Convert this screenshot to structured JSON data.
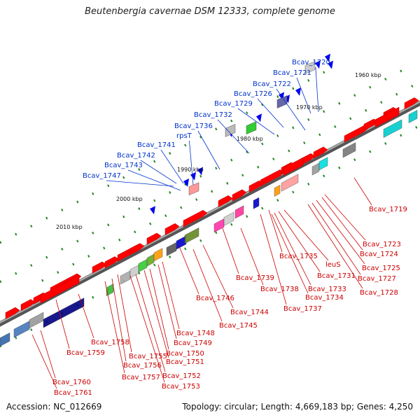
{
  "title": "Beutenbergia cavernae DSM 12333, complete genome",
  "footer": {
    "accession": "Accession: NC_012669",
    "summary": "Topology: circular; Length: 4,669,183 bp; Genes: 4,250"
  },
  "ticks": [
    "1960 kbp",
    "1970 kbp",
    "1980 kbp",
    "1990 kbp",
    "2000 kbp",
    "2010 kbp"
  ],
  "colors": {
    "forward": "#ff0000",
    "reverse": "#0000ee",
    "label_reverse": "#0033cc",
    "label_forward": "#cc0000",
    "backbone": "#888888",
    "tick": "#228822"
  },
  "genes_reverse": [
    "Bcav_1720",
    "Bcav_1721",
    "Bcav_1722",
    "Bcav_1726",
    "Bcav_1729",
    "Bcav_1732",
    "Bcav_1736",
    "rpsT",
    "Bcav_1741",
    "Bcav_1742",
    "Bcav_1743",
    "Bcav_1747"
  ],
  "genes_forward": [
    "Bcav_1719",
    "Bcav_1723",
    "Bcav_1724",
    "Bcav_1725",
    "Bcav_1727",
    "Bcav_1728",
    "Bcav_1735",
    "leuS",
    "Bcav_1731",
    "Bcav_1733",
    "Bcav_1734",
    "Bcav_1737",
    "Bcav_1739",
    "Bcav_1738",
    "Bcav_1744",
    "Bcav_1745",
    "Bcav_1746",
    "Bcav_1748",
    "Bcav_1749",
    "Bcav_1750",
    "Bcav_1751",
    "Bcav_1752",
    "Bcav_1753",
    "Bcav_1755",
    "Bcav_1756",
    "Bcav_1757",
    "Bcav_1758",
    "Bcav_1759",
    "Bcav_1760",
    "Bcav_1761"
  ]
}
